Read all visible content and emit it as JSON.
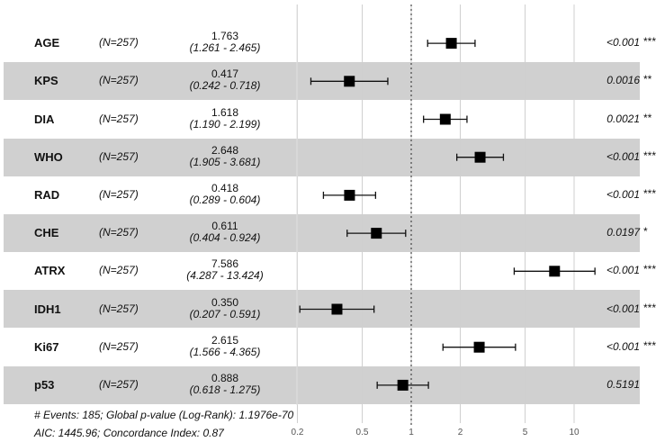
{
  "chart_data": {
    "type": "forest",
    "xscale": "log",
    "xlim": [
      0.2,
      15
    ],
    "reference_line": 1,
    "xticks": [
      "0.2",
      "0.5",
      "1",
      "2",
      "5",
      "10"
    ],
    "xtick_values": [
      0.2,
      0.5,
      1,
      2,
      5,
      10
    ],
    "rows": [
      {
        "var": "AGE",
        "n": "(N=257)",
        "hr": 1.763,
        "hr_label": "1.763",
        "lo": 1.261,
        "hi": 2.465,
        "ci_label": "(1.261 -  2.465)",
        "p": "<0.001",
        "stars": "***"
      },
      {
        "var": "KPS",
        "n": "(N=257)",
        "hr": 0.417,
        "hr_label": "0.417",
        "lo": 0.242,
        "hi": 0.718,
        "ci_label": "(0.242 -  0.718)",
        "p": "0.0016",
        "stars": "**"
      },
      {
        "var": "DIA",
        "n": "(N=257)",
        "hr": 1.618,
        "hr_label": "1.618",
        "lo": 1.19,
        "hi": 2.199,
        "ci_label": "(1.190 -  2.199)",
        "p": "0.0021",
        "stars": "**"
      },
      {
        "var": "WHO",
        "n": "(N=257)",
        "hr": 2.648,
        "hr_label": "2.648",
        "lo": 1.905,
        "hi": 3.681,
        "ci_label": "(1.905 -  3.681)",
        "p": "<0.001",
        "stars": "***"
      },
      {
        "var": "RAD",
        "n": "(N=257)",
        "hr": 0.418,
        "hr_label": "0.418",
        "lo": 0.289,
        "hi": 0.604,
        "ci_label": "(0.289 -  0.604)",
        "p": "<0.001",
        "stars": "***"
      },
      {
        "var": "CHE",
        "n": "(N=257)",
        "hr": 0.611,
        "hr_label": "0.611",
        "lo": 0.404,
        "hi": 0.924,
        "ci_label": "(0.404 -  0.924)",
        "p": "0.0197",
        "stars": "*"
      },
      {
        "var": "ATRX",
        "n": "(N=257)",
        "hr": 7.586,
        "hr_label": "7.586",
        "lo": 4.287,
        "hi": 13.424,
        "ci_label": "(4.287 - 13.424)",
        "p": "<0.001",
        "stars": "***"
      },
      {
        "var": "IDH1",
        "n": "(N=257)",
        "hr": 0.35,
        "hr_label": "0.350",
        "lo": 0.207,
        "hi": 0.591,
        "ci_label": "(0.207 -  0.591)",
        "p": "<0.001",
        "stars": "***"
      },
      {
        "var": "Ki67",
        "n": "(N=257)",
        "hr": 2.615,
        "hr_label": "2.615",
        "lo": 1.566,
        "hi": 4.365,
        "ci_label": "(1.566 -  4.365)",
        "p": "<0.001",
        "stars": "***"
      },
      {
        "var": "p53",
        "n": "(N=257)",
        "hr": 0.888,
        "hr_label": "0.888",
        "lo": 0.618,
        "hi": 1.275,
        "ci_label": "(0.618 -  1.275)",
        "p": "0.5191",
        "stars": ""
      }
    ],
    "footer": {
      "line1": "# Events: 185; Global p-value (Log-Rank): 1.1976e-70",
      "line2": "AIC: 1445.96; Concordance Index: 0.87"
    }
  }
}
